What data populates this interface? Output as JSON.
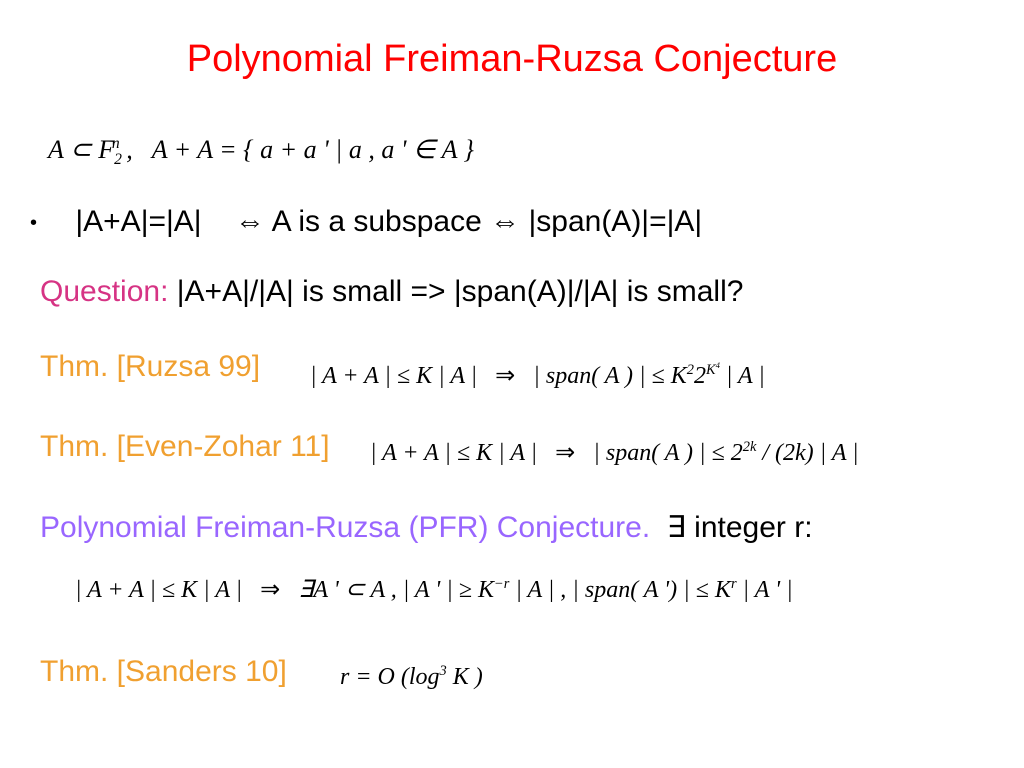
{
  "title": "Polynomial Freiman-Ruzsa Conjecture",
  "def": {
    "a": "A",
    "sub": "⊂",
    "F": "F",
    "n": "n",
    "two": "2",
    "comma": ",",
    "sumset": "A + A = { a + a ' | a , a ' ∈ A }"
  },
  "bullet": {
    "lhs": "|A+A|=|A|",
    "iff": "⇔",
    "mid": "A is a subspace",
    "iff2": "⇔",
    "rhs": "|span(A)|=|A|"
  },
  "question": {
    "label": "Question:",
    "text": " |A+A|/|A| is small => |span(A)|/|A| is small?"
  },
  "thm1": {
    "label": "Thm. [Ruzsa 99]",
    "formula_a": "| A + A | ≤ K | A |",
    "arrow": "⇒",
    "formula_b1": "| span( A ) | ≤ K",
    "exp2": "2",
    "two": "2",
    "expK4": "K",
    "exp4": "4",
    "tail": " | A |"
  },
  "thm2": {
    "label": "Thm. [Even-Zohar 11]",
    "formula_a": "| A + A | ≤ K | A |",
    "arrow": "⇒",
    "formula_b1": "| span( A ) | ≤ 2",
    "exp2k": "2k",
    "tail": " / (2k) | A |"
  },
  "conj": {
    "label": "Polynomial Freiman-Ruzsa (PFR) Conjecture.",
    "exists": "∃",
    "tail": " integer r:",
    "f1": "| A + A | ≤ K | A |",
    "arrow": "⇒",
    "f2": "∃A ' ⊂ A ,   | A ' | ≥ K",
    "neg_r": "−r",
    "f3": " | A | ,   | span( A ') | ≤ K",
    "r": "r",
    "f4": " | A ' |"
  },
  "thm3": {
    "label": "Thm. [Sanders 10]",
    "formula": "r = O (log",
    "exp3": "3",
    "tail": " K )"
  },
  "colors": {
    "title": "#ff0000",
    "question": "#d63384",
    "thm": "#f0a030",
    "conj": "#9966ff",
    "text": "#000000",
    "bg": "#ffffff"
  }
}
